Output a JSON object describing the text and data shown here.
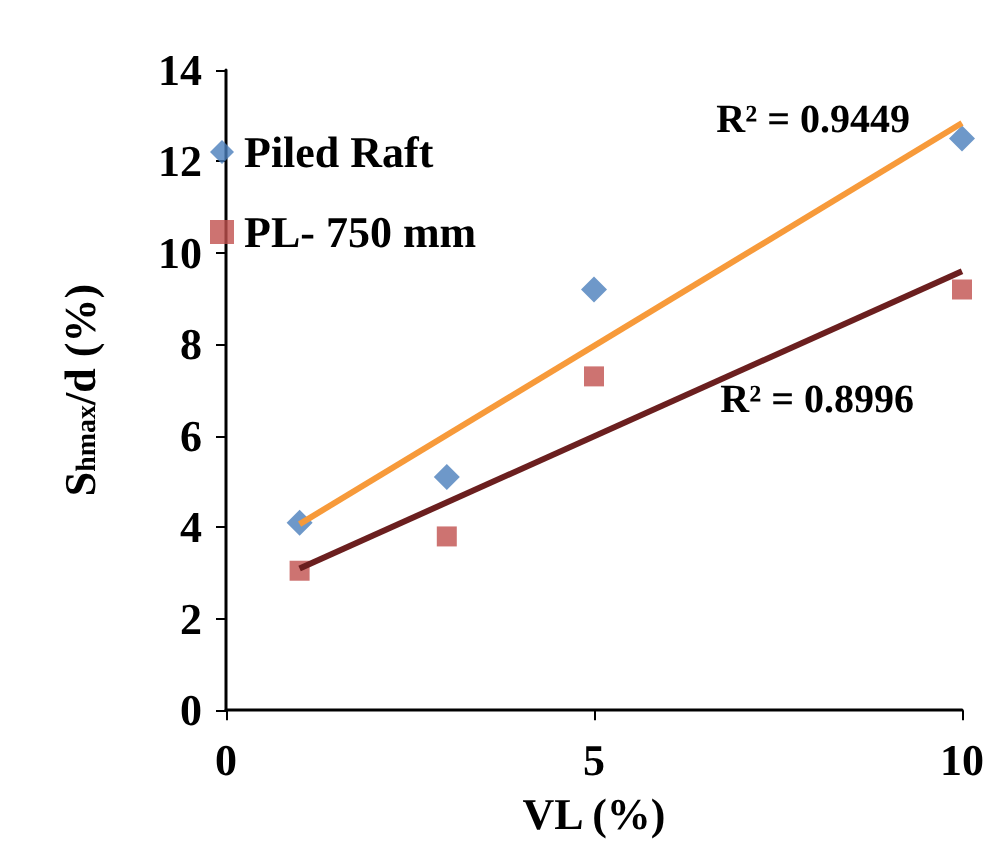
{
  "chart_data": {
    "type": "scatter",
    "xlabel": "VL (%)",
    "ylabel": "S$_{hmax}$/d (%)",
    "series": [
      {
        "name": "Piled Raft",
        "color": "#4a7ebb",
        "marker": "diamond",
        "x": [
          1,
          3,
          5,
          10
        ],
        "values": [
          4.1,
          5.1,
          9.2,
          12.5
        ]
      },
      {
        "name": "PL- 750 mm",
        "color": "#c0504d",
        "marker": "square",
        "x": [
          1,
          3,
          5,
          10
        ],
        "values": [
          3.05,
          3.8,
          7.3,
          9.2
        ]
      },
      {
        "type": "line",
        "color": "#f79a3a",
        "x": [
          1,
          10
        ],
        "values": [
          4.07,
          12.84
        ]
      },
      {
        "type": "line",
        "color": "#6b1f1f",
        "x": [
          1,
          10
        ],
        "values": [
          3.1,
          9.6
        ]
      }
    ],
    "annotations": [
      "R² = 0.9449",
      "R² = 0.8996"
    ],
    "xlim": [
      0,
      10
    ],
    "xticks": [
      0,
      5,
      10
    ],
    "ylim": [
      0,
      14
    ],
    "yticks": [
      0,
      2,
      4,
      6,
      8,
      10,
      12,
      14
    ],
    "grid": false,
    "legend": "top left"
  }
}
